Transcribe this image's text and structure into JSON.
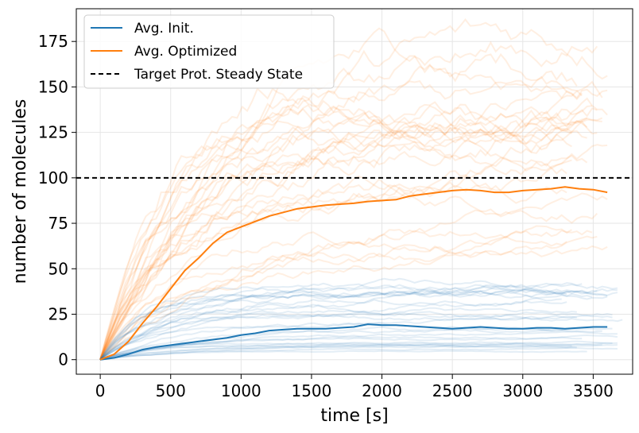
{
  "chart_data": {
    "type": "line",
    "xlabel": "time [s]",
    "ylabel": "number of molecules",
    "xlim": [
      -170,
      3780
    ],
    "ylim": [
      -8,
      193
    ],
    "xticks": [
      0,
      500,
      1000,
      1500,
      2000,
      2500,
      3000,
      3500
    ],
    "yticks": [
      0,
      25,
      50,
      75,
      100,
      125,
      150,
      175
    ],
    "grid": true,
    "legend_position": "top-left",
    "colors": {
      "init": "#1f77b4",
      "optimized": "#ff7f0e",
      "target": "#000000"
    },
    "series": [
      {
        "name": "Avg. Init.",
        "x": [
          0,
          100,
          200,
          300,
          400,
          500,
          600,
          700,
          800,
          900,
          1000,
          1100,
          1200,
          1300,
          1400,
          1500,
          1600,
          1700,
          1800,
          1900,
          2000,
          2100,
          2200,
          2300,
          2400,
          2500,
          2600,
          2700,
          2800,
          2900,
          3000,
          3100,
          3200,
          3300,
          3400,
          3500,
          3600
        ],
        "y": [
          0,
          1,
          3,
          5.5,
          7,
          8,
          9,
          10,
          11,
          12,
          13.5,
          14.5,
          16,
          16.5,
          17,
          17,
          17,
          17.5,
          18,
          19.5,
          19,
          19,
          18.5,
          18,
          17.5,
          17,
          17.5,
          18,
          17.5,
          17,
          17,
          17.5,
          17.5,
          17,
          17.5,
          18,
          18
        ]
      },
      {
        "name": "Avg. Optimized",
        "x": [
          0,
          100,
          200,
          300,
          400,
          500,
          600,
          700,
          800,
          900,
          1000,
          1100,
          1200,
          1300,
          1400,
          1500,
          1600,
          1700,
          1800,
          1900,
          2000,
          2100,
          2200,
          2300,
          2400,
          2500,
          2600,
          2700,
          2800,
          2900,
          3000,
          3100,
          3200,
          3300,
          3400,
          3500,
          3600
        ],
        "y": [
          0,
          3,
          10,
          20,
          29,
          39,
          49,
          56,
          64,
          70,
          73,
          76,
          79,
          81,
          83,
          84,
          85,
          85.5,
          86,
          87,
          87.5,
          88,
          90,
          91,
          92,
          93,
          93.5,
          93,
          92,
          92,
          93,
          93.5,
          94,
          95,
          94,
          93.5,
          92
        ]
      }
    ],
    "hline": {
      "name": "Target Prot. Steady State",
      "y": 100
    },
    "individual_runs": {
      "optimized_count": 30,
      "init_count": 30,
      "optimized_final_range": [
        50,
        175
      ],
      "init_final_range": [
        5,
        40
      ]
    }
  }
}
